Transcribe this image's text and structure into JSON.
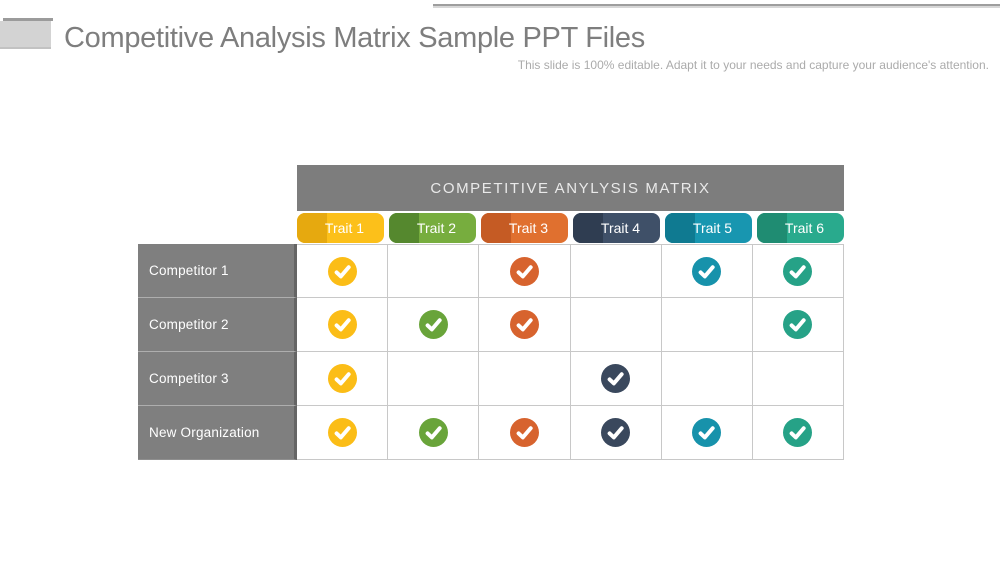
{
  "slide": {
    "title": "Competitive Analysis Matrix Sample PPT Files",
    "subtitle": "This slide is 100% editable. Adapt it to your needs and capture your audience's attention."
  },
  "table": {
    "title": "COMPETITIVE ANYLYSIS MATRIX",
    "traits": [
      {
        "label": "Trait 1",
        "pill_color": "#fcc01a",
        "pill_dark": "#e6a90f",
        "check_color": "#fbbd17"
      },
      {
        "label": "Trait 2",
        "pill_color": "#77ad3e",
        "pill_dark": "#55882e",
        "check_color": "#69a43a"
      },
      {
        "label": "Trait 3",
        "pill_color": "#e0702f",
        "pill_dark": "#c55b24",
        "check_color": "#d7632e"
      },
      {
        "label": "Trait 4",
        "pill_color": "#3f5068",
        "pill_dark": "#2f3d51",
        "check_color": "#3a485d"
      },
      {
        "label": "Trait 5",
        "pill_color": "#1896b0",
        "pill_dark": "#0f7a91",
        "check_color": "#1792ab"
      },
      {
        "label": "Trait 6",
        "pill_color": "#29aa8d",
        "pill_dark": "#1f8c72",
        "check_color": "#26a287"
      }
    ],
    "rows": [
      {
        "label": "Competitor 1",
        "checks": [
          true,
          false,
          true,
          false,
          true,
          true
        ]
      },
      {
        "label": "Competitor 2",
        "checks": [
          true,
          true,
          true,
          false,
          false,
          true
        ]
      },
      {
        "label": "Competitor 3",
        "checks": [
          true,
          false,
          false,
          true,
          false,
          false
        ]
      },
      {
        "label": "New Organization",
        "checks": [
          true,
          true,
          true,
          true,
          true,
          true
        ]
      }
    ]
  }
}
